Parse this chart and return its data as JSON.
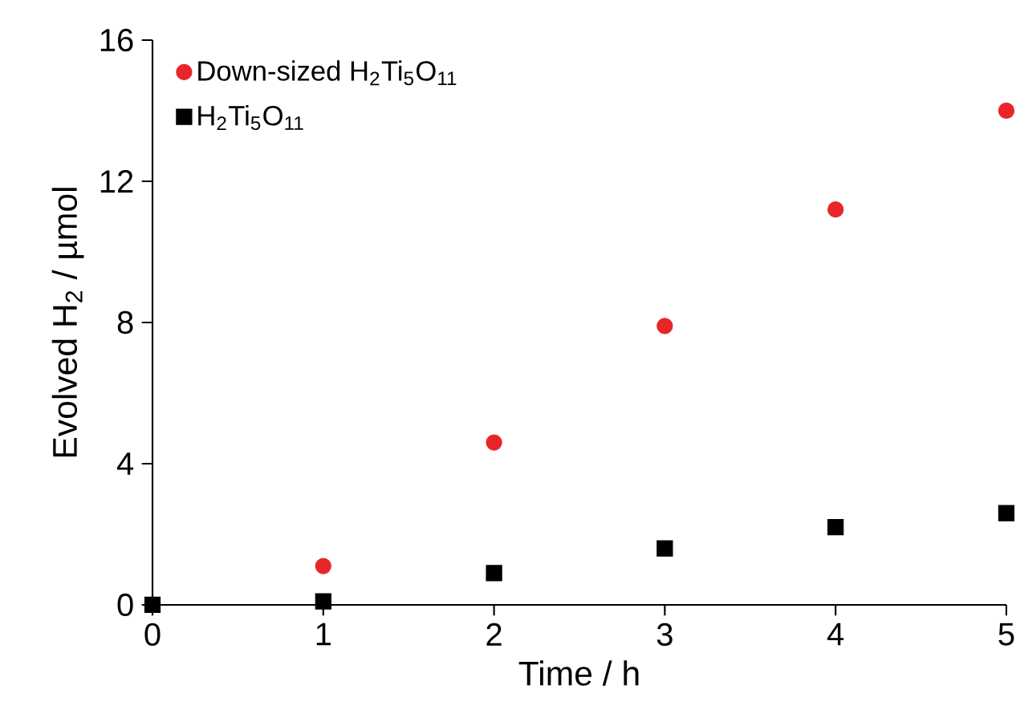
{
  "chart_data": {
    "type": "scatter",
    "xlabel": "Time / h",
    "ylabel": "Evolved H$_{2}$ / µmol",
    "x": [
      0,
      1,
      2,
      3,
      4,
      5
    ],
    "series": [
      {
        "name": "Down-sized H$_{2}$Ti$_{5}$O$_{11}$",
        "color": "#e8262a",
        "marker": "circle",
        "values": [
          null,
          1.1,
          4.6,
          7.9,
          11.2,
          14.0
        ]
      },
      {
        "name": "H$_{2}$Ti$_{5}$O$_{11}$",
        "color": "#000000",
        "marker": "square",
        "values": [
          0,
          0.1,
          0.9,
          1.6,
          2.2,
          2.6
        ]
      }
    ],
    "xlim": [
      0,
      5
    ],
    "ylim": [
      0,
      16
    ],
    "xticks": [
      0,
      1,
      2,
      3,
      4,
      5
    ],
    "yticks": [
      0,
      4,
      8,
      12,
      16
    ],
    "grid": false,
    "legend": "top left"
  }
}
